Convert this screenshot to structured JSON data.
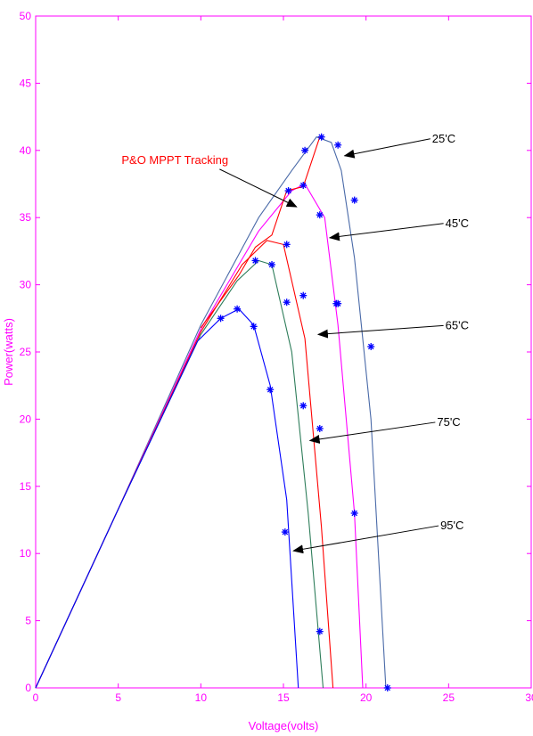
{
  "colors": {
    "axis": "#ff00ff",
    "background": "#ffffff",
    "marker": "#0000ff",
    "arrow": "#000000",
    "annotation_tracking": "#ff0000"
  },
  "chart_data": {
    "type": "line",
    "title": "",
    "xlabel": "Voltage(volts)",
    "ylabel": "Power(watts)",
    "xlim": [
      0,
      30
    ],
    "ylim": [
      0,
      50
    ],
    "xticks": [
      0,
      5,
      10,
      15,
      20,
      25,
      30
    ],
    "yticks": [
      0,
      5,
      10,
      15,
      20,
      25,
      30,
      35,
      40,
      45,
      50
    ],
    "xtick_labels": [
      "0",
      "5",
      "10",
      "15",
      "20",
      "25",
      "30"
    ],
    "ytick_labels": [
      "0",
      "5",
      "10",
      "15",
      "20",
      "25",
      "30",
      "35",
      "40",
      "45",
      "50"
    ],
    "grid": false,
    "legend": "none",
    "series": [
      {
        "color": "#4a6aa8",
        "x": [
          0,
          5,
          10,
          13.5,
          15.5,
          17.0,
          17.9,
          18.5,
          19.3,
          20.3,
          21.2
        ],
        "y": [
          0,
          13.3,
          27,
          35,
          38.5,
          41,
          40.6,
          38.5,
          32,
          20,
          0
        ]
      },
      {
        "color": "#ff00ff",
        "x": [
          0,
          5,
          10,
          13.5,
          15.5,
          16.3,
          17.5,
          18.3,
          19.3,
          19.8
        ],
        "y": [
          0,
          13.3,
          26.7,
          34,
          37,
          37.5,
          35,
          27,
          13,
          0
        ]
      },
      {
        "color": "#ff0000",
        "x": [
          0,
          5,
          10,
          12.5,
          14,
          15,
          16.3,
          17.3,
          18.0
        ],
        "y": [
          0,
          13.3,
          26.5,
          31.5,
          33.3,
          33,
          26,
          12,
          0
        ]
      },
      {
        "color": "#2e7d5a",
        "x": [
          0,
          5,
          10,
          12.2,
          13.5,
          14.3,
          15.5,
          16.5,
          17.4
        ],
        "y": [
          0,
          13.3,
          26.3,
          30.3,
          31.8,
          31.5,
          25,
          13,
          0
        ]
      },
      {
        "color": "#0000ff",
        "x": [
          0,
          5,
          9.8,
          11.2,
          12.3,
          13.2,
          14.2,
          15.2,
          15.9
        ],
        "y": [
          0,
          13.3,
          25.8,
          27.5,
          28.2,
          27.0,
          22.5,
          14,
          0
        ]
      },
      {
        "color": "#ff0000",
        "x": [
          10,
          12.3,
          13.3,
          14.3,
          15.2,
          16.2,
          17.2
        ],
        "y": [
          26.8,
          30.7,
          32.8,
          33.7,
          37.0,
          37.3,
          41.0
        ]
      }
    ],
    "markers": {
      "x": [
        11.2,
        12.2,
        13.2,
        13.3,
        14.2,
        14.3,
        15.1,
        15.2,
        15.2,
        15.3,
        16.2,
        16.2,
        16.2,
        16.3,
        17.2,
        17.2,
        17.2,
        17.3,
        18.2,
        18.3,
        18.3,
        19.3,
        19.3,
        20.3,
        21.3
      ],
      "y": [
        27.5,
        28.2,
        26.9,
        31.8,
        22.2,
        31.5,
        11.6,
        28.7,
        33.0,
        37.0,
        29.2,
        21.0,
        37.4,
        40.0,
        4.2,
        19.3,
        35.2,
        41.0,
        28.6,
        40.4,
        28.6,
        36.3,
        13.0,
        25.4,
        0
      ]
    },
    "annotations": [
      {
        "label": "25'C",
        "text_x": 24.0,
        "text_y": 40.6,
        "arrow_to_x": 18.7,
        "arrow_to_y": 39.6
      },
      {
        "label": "45'C",
        "text_x": 24.8,
        "text_y": 34.3,
        "arrow_to_x": 17.8,
        "arrow_to_y": 33.5
      },
      {
        "label": "65'C",
        "text_x": 24.8,
        "text_y": 26.7,
        "arrow_to_x": 17.1,
        "arrow_to_y": 26.3
      },
      {
        "label": "75'C",
        "text_x": 24.3,
        "text_y": 19.5,
        "arrow_to_x": 16.6,
        "arrow_to_y": 18.4
      },
      {
        "label": "95'C",
        "text_x": 24.5,
        "text_y": 11.8,
        "arrow_to_x": 15.6,
        "arrow_to_y": 10.2
      },
      {
        "label": "P&O MPPT Tracking",
        "text_x": 5.2,
        "text_y": 39.0,
        "arrow_to_x": 15.8,
        "arrow_to_y": 35.8
      }
    ]
  }
}
